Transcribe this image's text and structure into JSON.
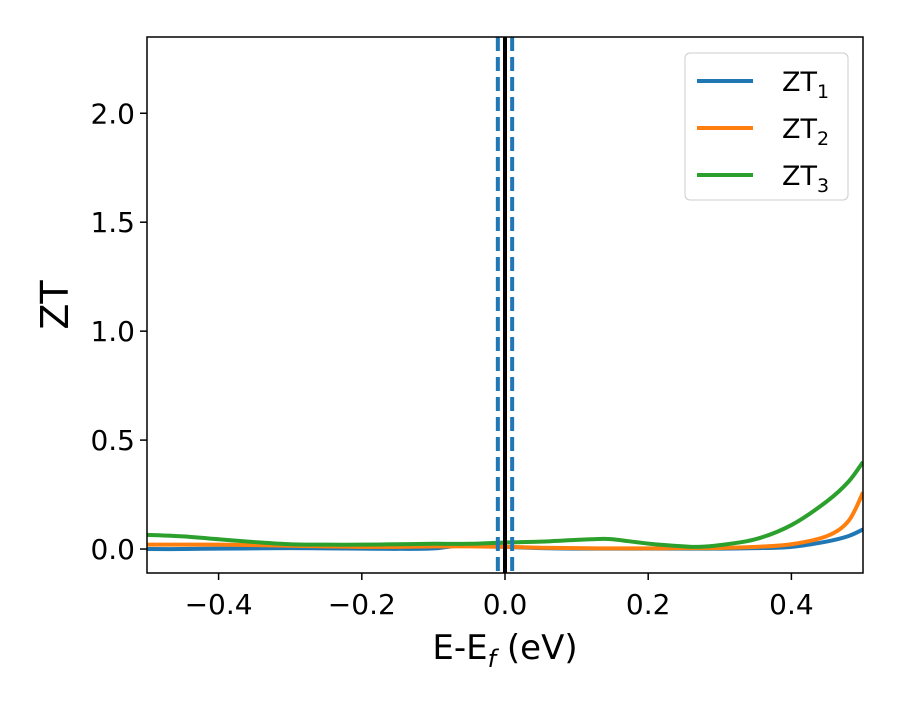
{
  "chart_data": {
    "type": "line",
    "xlabel": "E-E",
    "xlabel_sub": "f",
    "xlabel_unit": " (eV)",
    "ylabel": "ZT",
    "xlim": [
      -0.5,
      0.5
    ],
    "ylim": [
      -0.11,
      2.35
    ],
    "xticks": [
      -0.4,
      -0.2,
      0.0,
      0.2,
      0.4
    ],
    "xtick_labels": [
      "−0.4",
      "−0.2",
      "0.0",
      "0.2",
      "0.4"
    ],
    "yticks": [
      0.0,
      0.5,
      1.0,
      1.5,
      2.0
    ],
    "ytick_labels": [
      "0.0",
      "0.5",
      "1.0",
      "1.5",
      "2.0"
    ],
    "grid": false,
    "legend_position": "top-right",
    "vertical_lines": [
      {
        "x": 0.0,
        "style": "solid",
        "color": "#000000"
      },
      {
        "x": -0.01,
        "style": "dashed",
        "color": "#1f77b4"
      },
      {
        "x": 0.01,
        "style": "dashed",
        "color": "#1f77b4"
      }
    ],
    "x": [
      -0.5,
      -0.45,
      -0.4,
      -0.35,
      -0.3,
      -0.25,
      -0.2,
      -0.15,
      -0.1,
      -0.05,
      0.0,
      0.05,
      0.1,
      0.13,
      0.15,
      0.2,
      0.25,
      0.27,
      0.3,
      0.35,
      0.4,
      0.45,
      0.48,
      0.5
    ],
    "series": [
      {
        "name": "ZT",
        "sub": "1",
        "color": "#1f77b4",
        "values": [
          0.0,
          0.0,
          0.002,
          0.003,
          0.004,
          0.003,
          0.002,
          0.001,
          0.003,
          0.02,
          0.01,
          0.004,
          0.002,
          0.002,
          0.002,
          0.002,
          0.002,
          0.002,
          0.002,
          0.004,
          0.01,
          0.035,
          0.06,
          0.09
        ]
      },
      {
        "name": "ZT",
        "sub": "2",
        "color": "#ff7f0e",
        "values": [
          0.02,
          0.02,
          0.02,
          0.018,
          0.015,
          0.012,
          0.01,
          0.01,
          0.012,
          0.012,
          0.01,
          0.006,
          0.004,
          0.003,
          0.003,
          0.003,
          0.004,
          0.004,
          0.005,
          0.01,
          0.022,
          0.06,
          0.13,
          0.26
        ]
      },
      {
        "name": "ZT",
        "sub": "3",
        "color": "#2ca02c",
        "values": [
          0.065,
          0.058,
          0.045,
          0.032,
          0.022,
          0.02,
          0.02,
          0.022,
          0.024,
          0.024,
          0.03,
          0.034,
          0.042,
          0.046,
          0.045,
          0.025,
          0.012,
          0.01,
          0.018,
          0.045,
          0.11,
          0.22,
          0.31,
          0.4
        ]
      }
    ]
  }
}
